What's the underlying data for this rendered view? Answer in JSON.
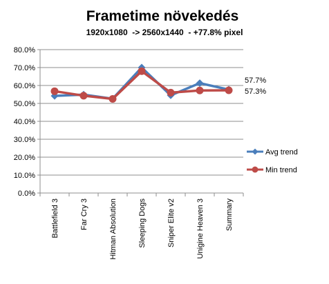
{
  "chart_data": {
    "type": "line",
    "title": "Frametime növekedés",
    "subtitle": "1920x1080  -> 2560x1440  - +77.8% pixel",
    "categories": [
      "Battlefield 3",
      "Far Cry 3",
      "Hitman Absolution",
      "Sleeping Dogs",
      "Sniper Elite v2",
      "Unigine Heaven 3",
      "Summary"
    ],
    "ylim": [
      0,
      80
    ],
    "yticks": [
      "0.0%",
      "10.0%",
      "20.0%",
      "30.0%",
      "40.0%",
      "50.0%",
      "60.0%",
      "70.0%",
      "80.0%"
    ],
    "grid": "horizontal",
    "legend_position": "right",
    "series": [
      {
        "name": "Avg trend",
        "color": "#4a7ebb",
        "marker": "diamond",
        "values": [
          54.2,
          54.9,
          52.6,
          70.0,
          54.5,
          61.3,
          57.7
        ],
        "end_label": "57.7%"
      },
      {
        "name": "Min trend",
        "color": "#be4b48",
        "marker": "circle",
        "values": [
          56.8,
          54.3,
          52.5,
          68.0,
          56.0,
          57.2,
          57.3
        ],
        "end_label": "57.3%"
      }
    ]
  }
}
